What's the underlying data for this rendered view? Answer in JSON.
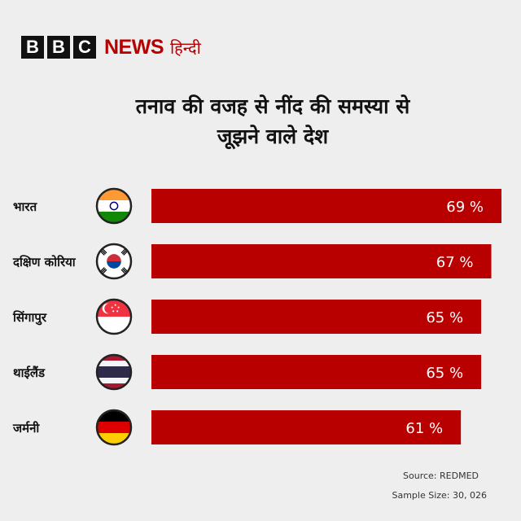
{
  "brand": {
    "letters": [
      "B",
      "B",
      "C"
    ],
    "news": "NEWS",
    "language": "हिन्दी",
    "color": "#b80000"
  },
  "title_line1": "तनाव की वजह से नींद की समस्या से",
  "title_line2": "जूझने वाले देश",
  "chart_data": {
    "type": "bar",
    "orientation": "horizontal",
    "categories": [
      "भारत",
      "दक्षिण कोरिया",
      "सिंगापुर",
      "थाईलैंड",
      "जर्मनी"
    ],
    "flags": [
      "india-flag-icon",
      "south-korea-flag-icon",
      "singapore-flag-icon",
      "thailand-flag-icon",
      "germany-flag-icon"
    ],
    "values": [
      69,
      67,
      65,
      65,
      61
    ],
    "value_labels": [
      "69 %",
      "67 %",
      "65 %",
      "65 %",
      "61 %"
    ],
    "bar_color": "#b80000",
    "grid": false
  },
  "source": "Source: REDMED",
  "sample_size": "Sample Size: 30, 026"
}
